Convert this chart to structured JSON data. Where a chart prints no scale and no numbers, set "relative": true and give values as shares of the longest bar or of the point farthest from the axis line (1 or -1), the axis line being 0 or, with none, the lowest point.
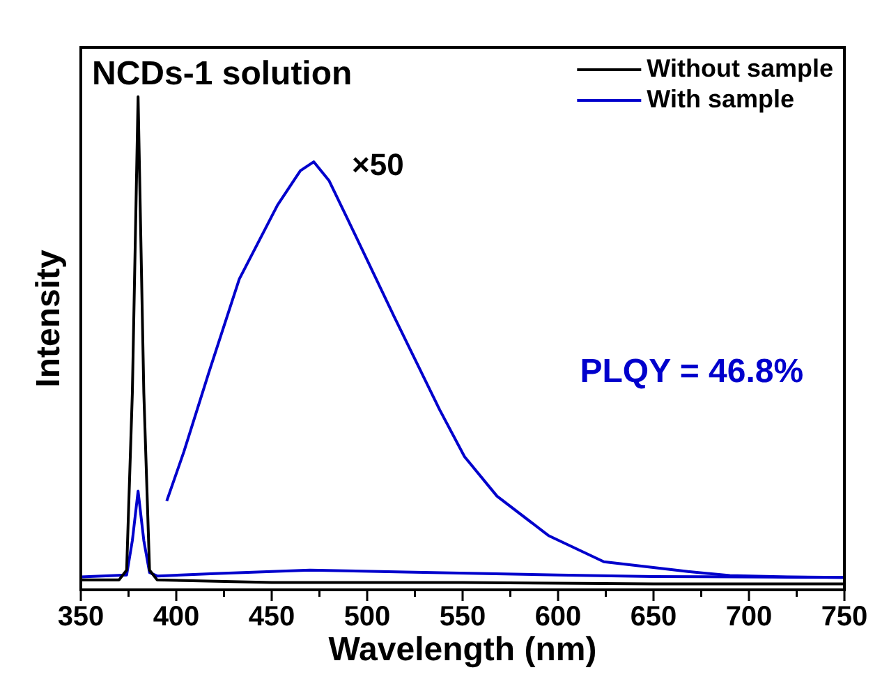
{
  "chart_data": {
    "type": "line",
    "title": "NCDs-1 solution",
    "xlabel": "Wavelength (nm)",
    "ylabel": "Intensity",
    "relative": true,
    "xlim": [
      350,
      750
    ],
    "xticks": [
      350,
      {
        "value": 375,
        "label": null
      },
      400,
      {
        "value": 425,
        "label": null
      },
      450,
      {
        "value": 475,
        "label": null
      },
      500,
      {
        "value": 525,
        "label": null
      },
      550,
      {
        "value": 575,
        "label": null
      },
      600,
      {
        "value": 625,
        "label": null
      },
      650,
      {
        "value": 675,
        "label": null
      },
      700,
      {
        "value": 725,
        "label": null
      },
      750
    ],
    "series": [
      {
        "name": "Without sample",
        "color": "#000000",
        "x": [
          350,
          370,
          374,
          377,
          380,
          383,
          386,
          390,
          450,
          550,
          650,
          750
        ],
        "values": [
          0.02,
          0.02,
          0.04,
          0.4,
          1,
          0.4,
          0.04,
          0.02,
          0.015,
          0.015,
          0.012,
          0.012
        ]
      },
      {
        "name": "With sample",
        "color": "#0000cc",
        "x": [
          350,
          374,
          377,
          380,
          383,
          386,
          390,
          420,
          470,
          520,
          600,
          650,
          750
        ],
        "values": [
          0.026,
          0.03,
          0.1,
          0.2,
          0.1,
          0.035,
          0.028,
          0.033,
          0.04,
          0.036,
          0.03,
          0.027,
          0.025
        ]
      },
      {
        "color": "#0000cc",
        "x": [
          395,
          404,
          417,
          433,
          453,
          465,
          472,
          480,
          490,
          514,
          538,
          551,
          568,
          595,
          624,
          668,
          690,
          720,
          750
        ],
        "values": [
          0.18,
          0.28,
          0.44,
          0.63,
          0.78,
          0.85,
          0.868,
          0.83,
          0.75,
          0.555,
          0.365,
          0.27,
          0.19,
          0.11,
          0.057,
          0.037,
          0.029,
          0.026,
          0.025
        ]
      }
    ],
    "annotations": [
      "×50",
      "PLQY = 46.8%"
    ],
    "legend": "top right",
    "marker": "none",
    "line_style": "solid"
  }
}
